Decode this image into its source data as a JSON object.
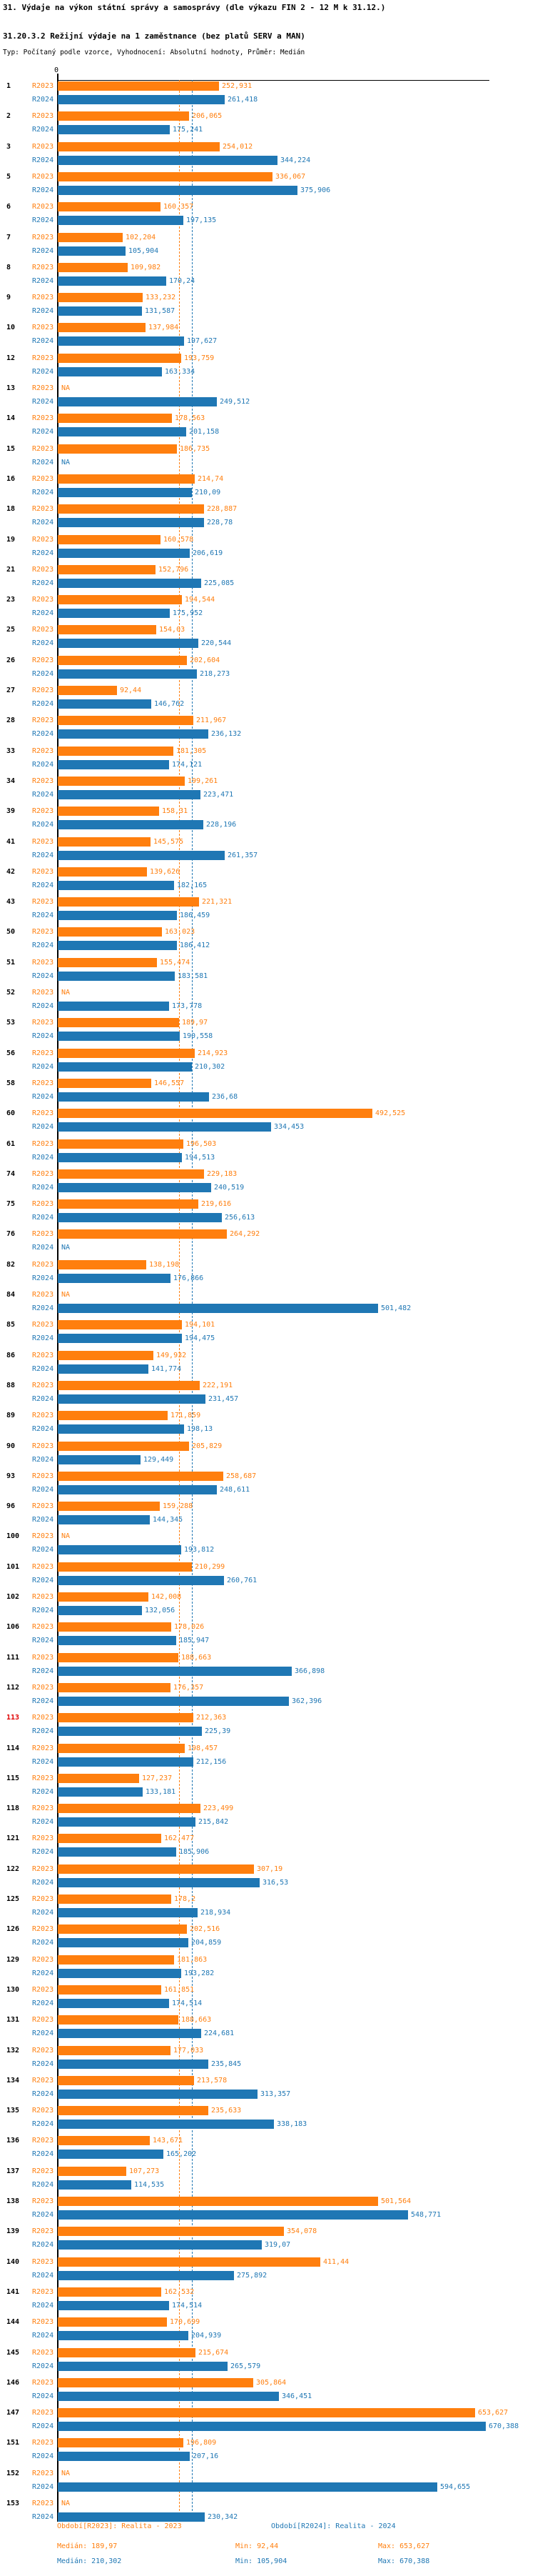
{
  "title": "31. Výdaje na výkon státní správy a samosprávy (dle výkazu FIN 2 - 12 M k 31.12.)",
  "subtitle": "31.20.3.2 Režijní výdaje na 1 zaměstnance (bez platů SERV a MAN)",
  "meta_line": "Typ: Počítaný podle vzorce, Vyhodnocení: Absolutní hodnoty, Průměr: Medián",
  "chart_data": {
    "type": "bar",
    "orientation": "horizontal",
    "axis_zero_label": "0",
    "series_labels": [
      "R2023",
      "R2024"
    ],
    "colors": {
      "r2023": "#ff7f0e",
      "r2024": "#1f77b4",
      "highlight_row": "#e00000"
    },
    "medians": {
      "r2023": 189.97,
      "r2024": 210.302
    },
    "highlighted_rows": [
      "113"
    ],
    "rows": [
      {
        "id": "1",
        "r2023": "252,931",
        "r2024": "261,418"
      },
      {
        "id": "2",
        "r2023": "206,065",
        "r2024": "175,241"
      },
      {
        "id": "3",
        "r2023": "254,012",
        "r2024": "344,224"
      },
      {
        "id": "5",
        "r2023": "336,067",
        "r2024": "375,906"
      },
      {
        "id": "6",
        "r2023": "160,357",
        "r2024": "197,135"
      },
      {
        "id": "7",
        "r2023": "102,204",
        "r2024": "105,904"
      },
      {
        "id": "8",
        "r2023": "109,982",
        "r2024": "170,24"
      },
      {
        "id": "9",
        "r2023": "133,232",
        "r2024": "131,587"
      },
      {
        "id": "10",
        "r2023": "137,984",
        "r2024": "197,627"
      },
      {
        "id": "12",
        "r2023": "193,759",
        "r2024": "163,334"
      },
      {
        "id": "13",
        "r2023": "NA",
        "r2024": "249,512"
      },
      {
        "id": "14",
        "r2023": "178,563",
        "r2024": "201,158"
      },
      {
        "id": "15",
        "r2023": "186,735",
        "r2024": "NA"
      },
      {
        "id": "16",
        "r2023": "214,74",
        "r2024": "210,09"
      },
      {
        "id": "18",
        "r2023": "228,887",
        "r2024": "228,78"
      },
      {
        "id": "19",
        "r2023": "160,578",
        "r2024": "206,619"
      },
      {
        "id": "21",
        "r2023": "152,796",
        "r2024": "225,085"
      },
      {
        "id": "23",
        "r2023": "194,544",
        "r2024": "175,952"
      },
      {
        "id": "25",
        "r2023": "154,03",
        "r2024": "220,544"
      },
      {
        "id": "26",
        "r2023": "202,604",
        "r2024": "218,273"
      },
      {
        "id": "27",
        "r2023": "92,44",
        "r2024": "146,762"
      },
      {
        "id": "28",
        "r2023": "211,967",
        "r2024": "236,132"
      },
      {
        "id": "33",
        "r2023": "181,305",
        "r2024": "174,121"
      },
      {
        "id": "34",
        "r2023": "199,261",
        "r2024": "223,471"
      },
      {
        "id": "39",
        "r2023": "158,31",
        "r2024": "228,196"
      },
      {
        "id": "41",
        "r2023": "145,575",
        "r2024": "261,357"
      },
      {
        "id": "42",
        "r2023": "139,626",
        "r2024": "182,165"
      },
      {
        "id": "43",
        "r2023": "221,321",
        "r2024": "186,459"
      },
      {
        "id": "50",
        "r2023": "163,023",
        "r2024": "186,412"
      },
      {
        "id": "51",
        "r2023": "155,474",
        "r2024": "183,581"
      },
      {
        "id": "52",
        "r2023": "NA",
        "r2024": "173,778"
      },
      {
        "id": "53",
        "r2023": "189,97",
        "r2024": "190,558"
      },
      {
        "id": "56",
        "r2023": "214,923",
        "r2024": "210,302"
      },
      {
        "id": "58",
        "r2023": "146,557",
        "r2024": "236,68"
      },
      {
        "id": "60",
        "r2023": "492,525",
        "r2024": "334,453"
      },
      {
        "id": "61",
        "r2023": "196,503",
        "r2024": "194,513"
      },
      {
        "id": "74",
        "r2023": "229,183",
        "r2024": "240,519"
      },
      {
        "id": "75",
        "r2023": "219,616",
        "r2024": "256,613"
      },
      {
        "id": "76",
        "r2023": "264,292",
        "r2024": "NA"
      },
      {
        "id": "82",
        "r2023": "138,198",
        "r2024": "176,866"
      },
      {
        "id": "84",
        "r2023": "NA",
        "r2024": "501,482"
      },
      {
        "id": "85",
        "r2023": "194,101",
        "r2024": "194,475"
      },
      {
        "id": "86",
        "r2023": "149,932",
        "r2024": "141,774"
      },
      {
        "id": "88",
        "r2023": "222,191",
        "r2024": "231,457"
      },
      {
        "id": "89",
        "r2023": "171,859",
        "r2024": "198,13"
      },
      {
        "id": "90",
        "r2023": "205,829",
        "r2024": "129,449"
      },
      {
        "id": "93",
        "r2023": "258,687",
        "r2024": "248,611"
      },
      {
        "id": "96",
        "r2023": "159,288",
        "r2024": "144,345"
      },
      {
        "id": "100",
        "r2023": "NA",
        "r2024": "193,812"
      },
      {
        "id": "101",
        "r2023": "210,299",
        "r2024": "260,761"
      },
      {
        "id": "102",
        "r2023": "142,008",
        "r2024": "132,056"
      },
      {
        "id": "106",
        "r2023": "178,026",
        "r2024": "185,947"
      },
      {
        "id": "111",
        "r2023": "188,663",
        "r2024": "366,898"
      },
      {
        "id": "112",
        "r2023": "176,357",
        "r2024": "362,396"
      },
      {
        "id": "113",
        "r2023": "212,363",
        "r2024": "225,39"
      },
      {
        "id": "114",
        "r2023": "198,457",
        "r2024": "212,156"
      },
      {
        "id": "115",
        "r2023": "127,237",
        "r2024": "133,181"
      },
      {
        "id": "118",
        "r2023": "223,499",
        "r2024": "215,842"
      },
      {
        "id": "121",
        "r2023": "162,477",
        "r2024": "185,906"
      },
      {
        "id": "122",
        "r2023": "307,19",
        "r2024": "316,53"
      },
      {
        "id": "125",
        "r2023": "178,2",
        "r2024": "218,934"
      },
      {
        "id": "126",
        "r2023": "202,516",
        "r2024": "204,859"
      },
      {
        "id": "129",
        "r2023": "181,863",
        "r2024": "193,282"
      },
      {
        "id": "130",
        "r2023": "161,851",
        "r2024": "174,514"
      },
      {
        "id": "131",
        "r2023": "188,663",
        "r2024": "224,681"
      },
      {
        "id": "132",
        "r2023": "177,033",
        "r2024": "235,845"
      },
      {
        "id": "134",
        "r2023": "213,578",
        "r2024": "313,357"
      },
      {
        "id": "135",
        "r2023": "235,633",
        "r2024": "338,183"
      },
      {
        "id": "136",
        "r2023": "143,671",
        "r2024": "165,202"
      },
      {
        "id": "137",
        "r2023": "107,273",
        "r2024": "114,535"
      },
      {
        "id": "138",
        "r2023": "501,564",
        "r2024": "548,771"
      },
      {
        "id": "139",
        "r2023": "354,078",
        "r2024": "319,07"
      },
      {
        "id": "140",
        "r2023": "411,44",
        "r2024": "275,892"
      },
      {
        "id": "141",
        "r2023": "162,532",
        "r2024": "174,514"
      },
      {
        "id": "144",
        "r2023": "170,699",
        "r2024": "204,939"
      },
      {
        "id": "145",
        "r2023": "215,674",
        "r2024": "265,579"
      },
      {
        "id": "146",
        "r2023": "305,864",
        "r2024": "346,451"
      },
      {
        "id": "147",
        "r2023": "653,627",
        "r2024": "670,388"
      },
      {
        "id": "151",
        "r2023": "196,809",
        "r2024": "207,16"
      },
      {
        "id": "152",
        "r2023": "NA",
        "r2024": "594,655"
      },
      {
        "id": "153",
        "r2023": "NA",
        "r2024": "230,342"
      }
    ],
    "legend": [
      {
        "label": "Období[R2023]: Realita - 2023"
      },
      {
        "label": "Období[R2024]: Realita - 2024"
      }
    ],
    "stats": [
      {
        "median": "Medián: 189,97",
        "min": "Min: 92,44",
        "max": "Max: 653,627"
      },
      {
        "median": "Medián: 210,302",
        "min": "Min: 105,904",
        "max": "Max: 670,388"
      }
    ]
  }
}
